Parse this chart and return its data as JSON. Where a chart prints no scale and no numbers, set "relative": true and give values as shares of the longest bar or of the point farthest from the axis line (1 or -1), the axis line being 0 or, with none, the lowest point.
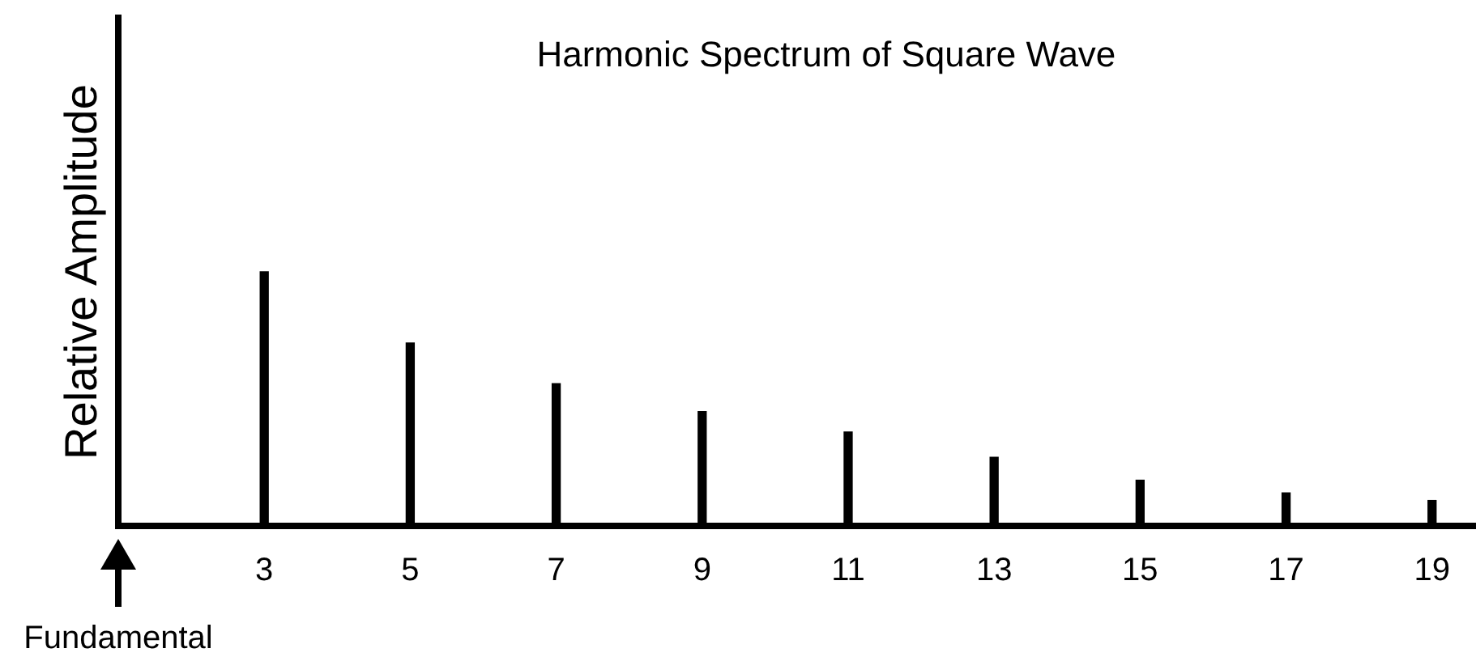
{
  "chart_data": {
    "type": "bar",
    "title": "Harmonic Spectrum of Square Wave",
    "ylabel": "Relative Amplitude",
    "relative": true,
    "x": [
      3,
      5,
      7,
      9,
      11,
      13,
      15,
      17,
      19
    ],
    "values": [
      1,
      0.72,
      0.56,
      0.45,
      0.37,
      0.27,
      0.18,
      0.13,
      0.1
    ],
    "color": "#000000",
    "xlim": [
      1,
      19.6
    ],
    "xticks": [
      3,
      5,
      7,
      9,
      11,
      13,
      15,
      17,
      19
    ],
    "annotations": [
      "Fundamental"
    ]
  }
}
